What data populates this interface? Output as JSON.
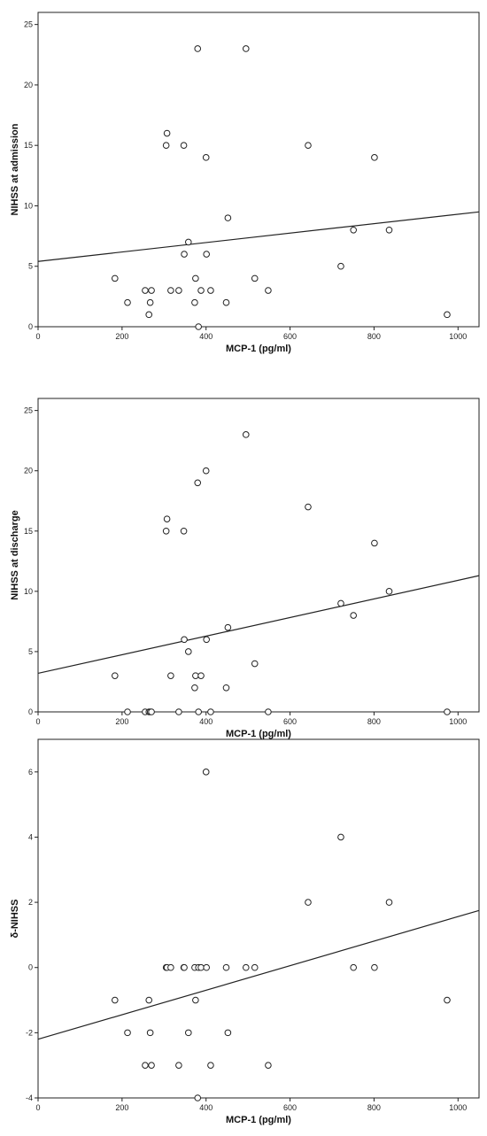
{
  "chart_data": [
    {
      "type": "scatter",
      "xlabel": "MCP-1 (pg/ml)",
      "ylabel": "NIHSS at admission",
      "xlim": [
        0,
        1050
      ],
      "ylim": [
        0,
        26
      ],
      "xticks": [
        0,
        200,
        400,
        600,
        800,
        1000
      ],
      "yticks": [
        0,
        5,
        10,
        15,
        20,
        25
      ],
      "grid": false,
      "fit_line": {
        "x": [
          0,
          1050
        ],
        "y": [
          5.4,
          9.5
        ]
      },
      "points": [
        {
          "x": 183,
          "y": 4
        },
        {
          "x": 213,
          "y": 2
        },
        {
          "x": 255,
          "y": 3
        },
        {
          "x": 264,
          "y": 1
        },
        {
          "x": 267,
          "y": 2
        },
        {
          "x": 270,
          "y": 3
        },
        {
          "x": 305,
          "y": 15
        },
        {
          "x": 307,
          "y": 16
        },
        {
          "x": 316,
          "y": 3
        },
        {
          "x": 335,
          "y": 3
        },
        {
          "x": 347,
          "y": 15
        },
        {
          "x": 348,
          "y": 6
        },
        {
          "x": 358,
          "y": 7
        },
        {
          "x": 373,
          "y": 2
        },
        {
          "x": 375,
          "y": 4
        },
        {
          "x": 380,
          "y": 23
        },
        {
          "x": 382,
          "y": 0
        },
        {
          "x": 388,
          "y": 3
        },
        {
          "x": 400,
          "y": 14
        },
        {
          "x": 401,
          "y": 6
        },
        {
          "x": 411,
          "y": 3
        },
        {
          "x": 448,
          "y": 2
        },
        {
          "x": 452,
          "y": 9
        },
        {
          "x": 495,
          "y": 23
        },
        {
          "x": 516,
          "y": 4
        },
        {
          "x": 548,
          "y": 3
        },
        {
          "x": 643,
          "y": 15
        },
        {
          "x": 721,
          "y": 5
        },
        {
          "x": 751,
          "y": 8
        },
        {
          "x": 801,
          "y": 14
        },
        {
          "x": 836,
          "y": 8
        },
        {
          "x": 974,
          "y": 1
        }
      ]
    },
    {
      "type": "scatter",
      "xlabel": "MCP-1 (pg/ml)",
      "ylabel": "NIHSS at discharge",
      "xlim": [
        0,
        1050
      ],
      "ylim": [
        0,
        26
      ],
      "xticks": [
        0,
        200,
        400,
        600,
        800,
        1000
      ],
      "yticks": [
        0,
        5,
        10,
        15,
        20,
        25
      ],
      "grid": false,
      "fit_line": {
        "x": [
          0,
          1050
        ],
        "y": [
          3.2,
          11.3
        ]
      },
      "points": [
        {
          "x": 183,
          "y": 3
        },
        {
          "x": 213,
          "y": 0
        },
        {
          "x": 255,
          "y": 0
        },
        {
          "x": 264,
          "y": 0
        },
        {
          "x": 267,
          "y": 0
        },
        {
          "x": 270,
          "y": 0
        },
        {
          "x": 305,
          "y": 15
        },
        {
          "x": 307,
          "y": 16
        },
        {
          "x": 316,
          "y": 3
        },
        {
          "x": 335,
          "y": 0
        },
        {
          "x": 347,
          "y": 15
        },
        {
          "x": 348,
          "y": 6
        },
        {
          "x": 358,
          "y": 5
        },
        {
          "x": 373,
          "y": 2
        },
        {
          "x": 375,
          "y": 3
        },
        {
          "x": 380,
          "y": 19
        },
        {
          "x": 382,
          "y": 0
        },
        {
          "x": 388,
          "y": 3
        },
        {
          "x": 400,
          "y": 20
        },
        {
          "x": 401,
          "y": 6
        },
        {
          "x": 411,
          "y": 0
        },
        {
          "x": 448,
          "y": 2
        },
        {
          "x": 452,
          "y": 7
        },
        {
          "x": 495,
          "y": 23
        },
        {
          "x": 516,
          "y": 4
        },
        {
          "x": 548,
          "y": 0
        },
        {
          "x": 643,
          "y": 17
        },
        {
          "x": 721,
          "y": 9
        },
        {
          "x": 751,
          "y": 8
        },
        {
          "x": 801,
          "y": 14
        },
        {
          "x": 836,
          "y": 10
        },
        {
          "x": 974,
          "y": 0
        }
      ]
    },
    {
      "type": "scatter",
      "xlabel": "MCP-1 (pg/ml)",
      "ylabel": "δ-NIHSS",
      "xlim": [
        0,
        1050
      ],
      "ylim": [
        -4,
        7
      ],
      "xticks": [
        0,
        200,
        400,
        600,
        800,
        1000
      ],
      "yticks": [
        -4,
        -2,
        0,
        2,
        4,
        6
      ],
      "grid": false,
      "fit_line": {
        "x": [
          0,
          1050
        ],
        "y": [
          -2.2,
          1.75
        ]
      },
      "points": [
        {
          "x": 183,
          "y": -1
        },
        {
          "x": 213,
          "y": -2
        },
        {
          "x": 255,
          "y": -3
        },
        {
          "x": 264,
          "y": -1
        },
        {
          "x": 267,
          "y": -2
        },
        {
          "x": 270,
          "y": -3
        },
        {
          "x": 305,
          "y": 0
        },
        {
          "x": 307,
          "y": 0
        },
        {
          "x": 316,
          "y": 0
        },
        {
          "x": 335,
          "y": -3
        },
        {
          "x": 347,
          "y": 0
        },
        {
          "x": 348,
          "y": 0
        },
        {
          "x": 358,
          "y": -2
        },
        {
          "x": 373,
          "y": 0
        },
        {
          "x": 375,
          "y": -1
        },
        {
          "x": 380,
          "y": -4
        },
        {
          "x": 382,
          "y": 0
        },
        {
          "x": 388,
          "y": 0
        },
        {
          "x": 400,
          "y": 6
        },
        {
          "x": 401,
          "y": 0
        },
        {
          "x": 411,
          "y": -3
        },
        {
          "x": 448,
          "y": 0
        },
        {
          "x": 452,
          "y": -2
        },
        {
          "x": 495,
          "y": 0
        },
        {
          "x": 516,
          "y": 0
        },
        {
          "x": 548,
          "y": -3
        },
        {
          "x": 643,
          "y": 2
        },
        {
          "x": 721,
          "y": 4
        },
        {
          "x": 751,
          "y": 0
        },
        {
          "x": 801,
          "y": 0
        },
        {
          "x": 836,
          "y": 2
        },
        {
          "x": 974,
          "y": -1
        }
      ]
    }
  ]
}
